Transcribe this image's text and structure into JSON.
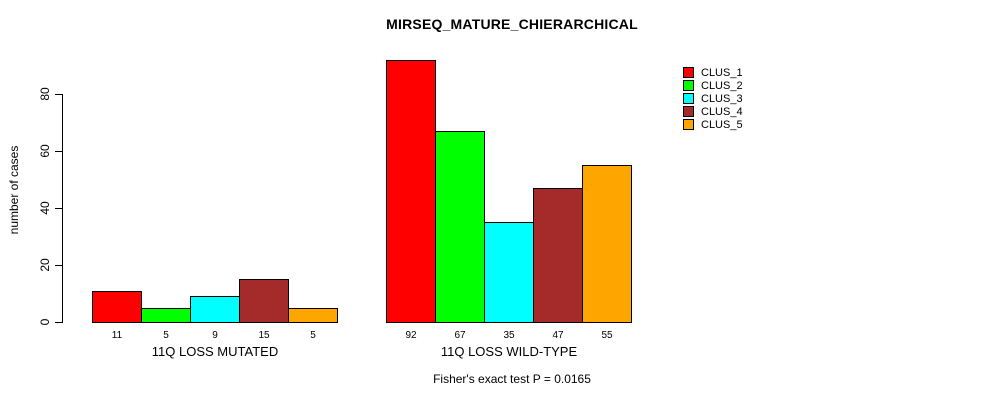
{
  "page": {
    "background_color": "#ffffff",
    "text_color": "#000000"
  },
  "chart_data": {
    "type": "bar",
    "title": "MIRSEQ_MATURE_CHIERARCHICAL",
    "ylabel": "number of cases",
    "xlabel": "",
    "yticks": [
      0,
      20,
      40,
      60,
      80
    ],
    "ylim": [
      0,
      95
    ],
    "grid": false,
    "legend_position": "top-right",
    "bar_value_labels_shown": true,
    "categories": [
      "11Q LOSS MUTATED",
      "11Q LOSS WILD-TYPE"
    ],
    "series": [
      {
        "name": "CLUS_1",
        "color": "#ff0000",
        "values": [
          11,
          92
        ]
      },
      {
        "name": "CLUS_2",
        "color": "#00ff00",
        "values": [
          5,
          67
        ]
      },
      {
        "name": "CLUS_3",
        "color": "#00ffff",
        "values": [
          9,
          35
        ]
      },
      {
        "name": "CLUS_4",
        "color": "#a52a2a",
        "values": [
          15,
          47
        ]
      },
      {
        "name": "CLUS_5",
        "color": "#ffa500",
        "values": [
          5,
          55
        ]
      }
    ],
    "footnote": "Fisher's exact test P = 0.0165"
  }
}
